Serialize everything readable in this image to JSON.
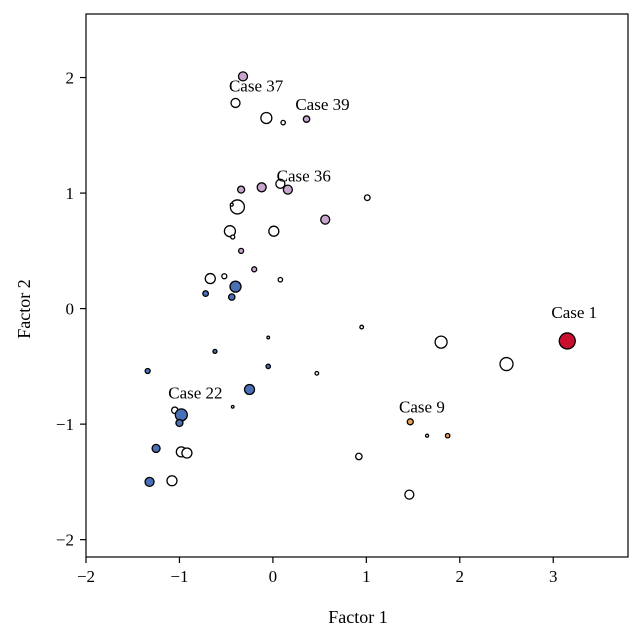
{
  "chart_data": {
    "type": "scatter",
    "xlabel": "Factor 1",
    "ylabel": "Factor 2",
    "xlim": [
      -2,
      3.8
    ],
    "ylim": [
      -2.15,
      2.55
    ],
    "xticks": [
      -2,
      -1,
      0,
      1,
      2,
      3
    ],
    "yticks": [
      -2,
      -1,
      0,
      1,
      2
    ],
    "grid": false,
    "colors": {
      "white": "#ffffff",
      "purple": "#c6a6cc",
      "blue": "#4a6fb5",
      "red": "#c8102e",
      "orange": "#f0a050"
    },
    "points": [
      {
        "x": -0.32,
        "y": 2.01,
        "size": 4.5,
        "color": "purple"
      },
      {
        "x": -0.4,
        "y": 1.78,
        "size": 4.5,
        "color": "white"
      },
      {
        "x": -0.07,
        "y": 1.65,
        "size": 5.5,
        "color": "white"
      },
      {
        "x": 0.11,
        "y": 1.61,
        "size": 2.2,
        "color": "white"
      },
      {
        "x": 0.36,
        "y": 1.64,
        "size": 3.2,
        "color": "purple"
      },
      {
        "x": -0.34,
        "y": 1.03,
        "size": 3.5,
        "color": "purple"
      },
      {
        "x": -0.12,
        "y": 1.05,
        "size": 4.5,
        "color": "purple"
      },
      {
        "x": 0.08,
        "y": 1.08,
        "size": 4.5,
        "color": "white"
      },
      {
        "x": 0.16,
        "y": 1.03,
        "size": 4.5,
        "color": "purple"
      },
      {
        "x": 1.01,
        "y": 0.96,
        "size": 2.8,
        "color": "white"
      },
      {
        "x": -0.38,
        "y": 0.88,
        "size": 7.0,
        "color": "white"
      },
      {
        "x": -0.44,
        "y": 0.9,
        "size": 1.5,
        "color": "white"
      },
      {
        "x": 0.56,
        "y": 0.77,
        "size": 4.5,
        "color": "purple"
      },
      {
        "x": -0.46,
        "y": 0.67,
        "size": 5.5,
        "color": "white"
      },
      {
        "x": -0.43,
        "y": 0.62,
        "size": 2.0,
        "color": "white"
      },
      {
        "x": 0.01,
        "y": 0.67,
        "size": 5.0,
        "color": "white"
      },
      {
        "x": -0.34,
        "y": 0.5,
        "size": 2.5,
        "color": "purple"
      },
      {
        "x": -0.2,
        "y": 0.34,
        "size": 2.5,
        "color": "purple"
      },
      {
        "x": -0.52,
        "y": 0.28,
        "size": 2.5,
        "color": "white"
      },
      {
        "x": -0.67,
        "y": 0.26,
        "size": 5.0,
        "color": "white"
      },
      {
        "x": 0.08,
        "y": 0.25,
        "size": 2.2,
        "color": "white"
      },
      {
        "x": -0.4,
        "y": 0.19,
        "size": 5.5,
        "color": "blue"
      },
      {
        "x": -0.72,
        "y": 0.13,
        "size": 2.8,
        "color": "blue"
      },
      {
        "x": -0.44,
        "y": 0.1,
        "size": 3.2,
        "color": "blue"
      },
      {
        "x": 0.95,
        "y": -0.16,
        "size": 1.8,
        "color": "white"
      },
      {
        "x": -0.05,
        "y": -0.25,
        "size": 1.3,
        "color": "white"
      },
      {
        "x": -0.62,
        "y": -0.37,
        "size": 2.0,
        "color": "blue"
      },
      {
        "x": -0.05,
        "y": -0.5,
        "size": 2.2,
        "color": "blue"
      },
      {
        "x": 0.47,
        "y": -0.56,
        "size": 1.8,
        "color": "white"
      },
      {
        "x": 1.8,
        "y": -0.29,
        "size": 6.0,
        "color": "white"
      },
      {
        "x": 2.5,
        "y": -0.48,
        "size": 6.5,
        "color": "white"
      },
      {
        "x": 3.15,
        "y": -0.28,
        "size": 8.0,
        "color": "red"
      },
      {
        "x": -1.34,
        "y": -0.54,
        "size": 2.5,
        "color": "blue"
      },
      {
        "x": -0.25,
        "y": -0.7,
        "size": 5.0,
        "color": "blue"
      },
      {
        "x": -0.43,
        "y": -0.85,
        "size": 1.3,
        "color": "white"
      },
      {
        "x": -1.05,
        "y": -0.88,
        "size": 3.2,
        "color": "white"
      },
      {
        "x": -0.98,
        "y": -0.92,
        "size": 6.0,
        "color": "blue"
      },
      {
        "x": -1.0,
        "y": -0.99,
        "size": 3.5,
        "color": "blue"
      },
      {
        "x": 1.47,
        "y": -0.98,
        "size": 3.0,
        "color": "orange"
      },
      {
        "x": 1.65,
        "y": -1.1,
        "size": 1.5,
        "color": "white"
      },
      {
        "x": 1.87,
        "y": -1.1,
        "size": 2.2,
        "color": "orange"
      },
      {
        "x": -1.25,
        "y": -1.21,
        "size": 4.0,
        "color": "blue"
      },
      {
        "x": -0.98,
        "y": -1.24,
        "size": 5.0,
        "color": "white"
      },
      {
        "x": -0.92,
        "y": -1.25,
        "size": 5.0,
        "color": "white"
      },
      {
        "x": 0.92,
        "y": -1.28,
        "size": 3.2,
        "color": "white"
      },
      {
        "x": -1.32,
        "y": -1.5,
        "size": 4.5,
        "color": "blue"
      },
      {
        "x": -1.08,
        "y": -1.49,
        "size": 5.0,
        "color": "white"
      },
      {
        "x": 1.46,
        "y": -1.61,
        "size": 4.5,
        "color": "white"
      }
    ],
    "annotations": [
      {
        "text": "Case 37",
        "x": -0.47,
        "y": 1.88
      },
      {
        "text": "Case 39",
        "x": 0.24,
        "y": 1.72
      },
      {
        "text": "Case 36",
        "x": 0.04,
        "y": 1.1
      },
      {
        "text": "Case 1",
        "x": 2.98,
        "y": -0.08
      },
      {
        "text": "Case 22",
        "x": -1.12,
        "y": -0.78
      },
      {
        "text": "Case 9",
        "x": 1.35,
        "y": -0.9
      }
    ]
  }
}
